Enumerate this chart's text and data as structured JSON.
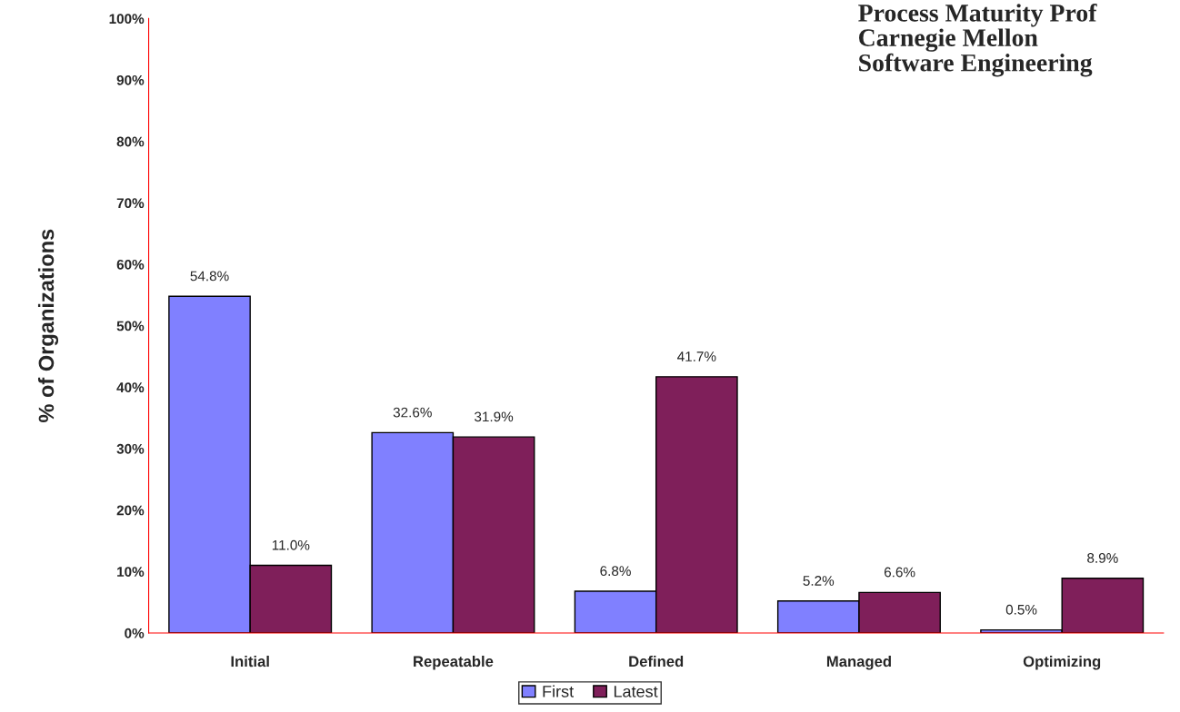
{
  "chart_data": {
    "type": "bar",
    "title": "Process Maturity Prof\nCarnegie Mellon\nSoftware Engineering",
    "ylabel": "% of Organizations",
    "categories": [
      "Initial",
      "Repeatable",
      "Defined",
      "Managed",
      "Optimizing"
    ],
    "series": [
      {
        "name": "First",
        "color": "#8080ff",
        "values": [
          54.8,
          32.6,
          6.8,
          5.2,
          0.5
        ],
        "value_labels": [
          "54.8%",
          "32.6%",
          "6.8%",
          "5.2%",
          "0.5%"
        ]
      },
      {
        "name": "Latest",
        "color": "#7f1f5a",
        "values": [
          11.0,
          31.9,
          41.7,
          6.6,
          8.9
        ],
        "value_labels": [
          "11.0%",
          "31.9%",
          "41.7%",
          "6.6%",
          "8.9%"
        ]
      }
    ],
    "ylim": [
      0,
      100
    ],
    "yticks": [
      {
        "value": 0,
        "label": "0%"
      },
      {
        "value": 10,
        "label": "10%"
      },
      {
        "value": 20,
        "label": "20%"
      },
      {
        "value": 30,
        "label": "30%"
      },
      {
        "value": 40,
        "label": "40%"
      },
      {
        "value": 50,
        "label": "50%"
      },
      {
        "value": 60,
        "label": "60%"
      },
      {
        "value": 70,
        "label": "70%"
      },
      {
        "value": 80,
        "label": "80%"
      },
      {
        "value": 90,
        "label": "90%"
      },
      {
        "value": 100,
        "label": "100%"
      }
    ],
    "grid": false,
    "legend": "bottom"
  }
}
